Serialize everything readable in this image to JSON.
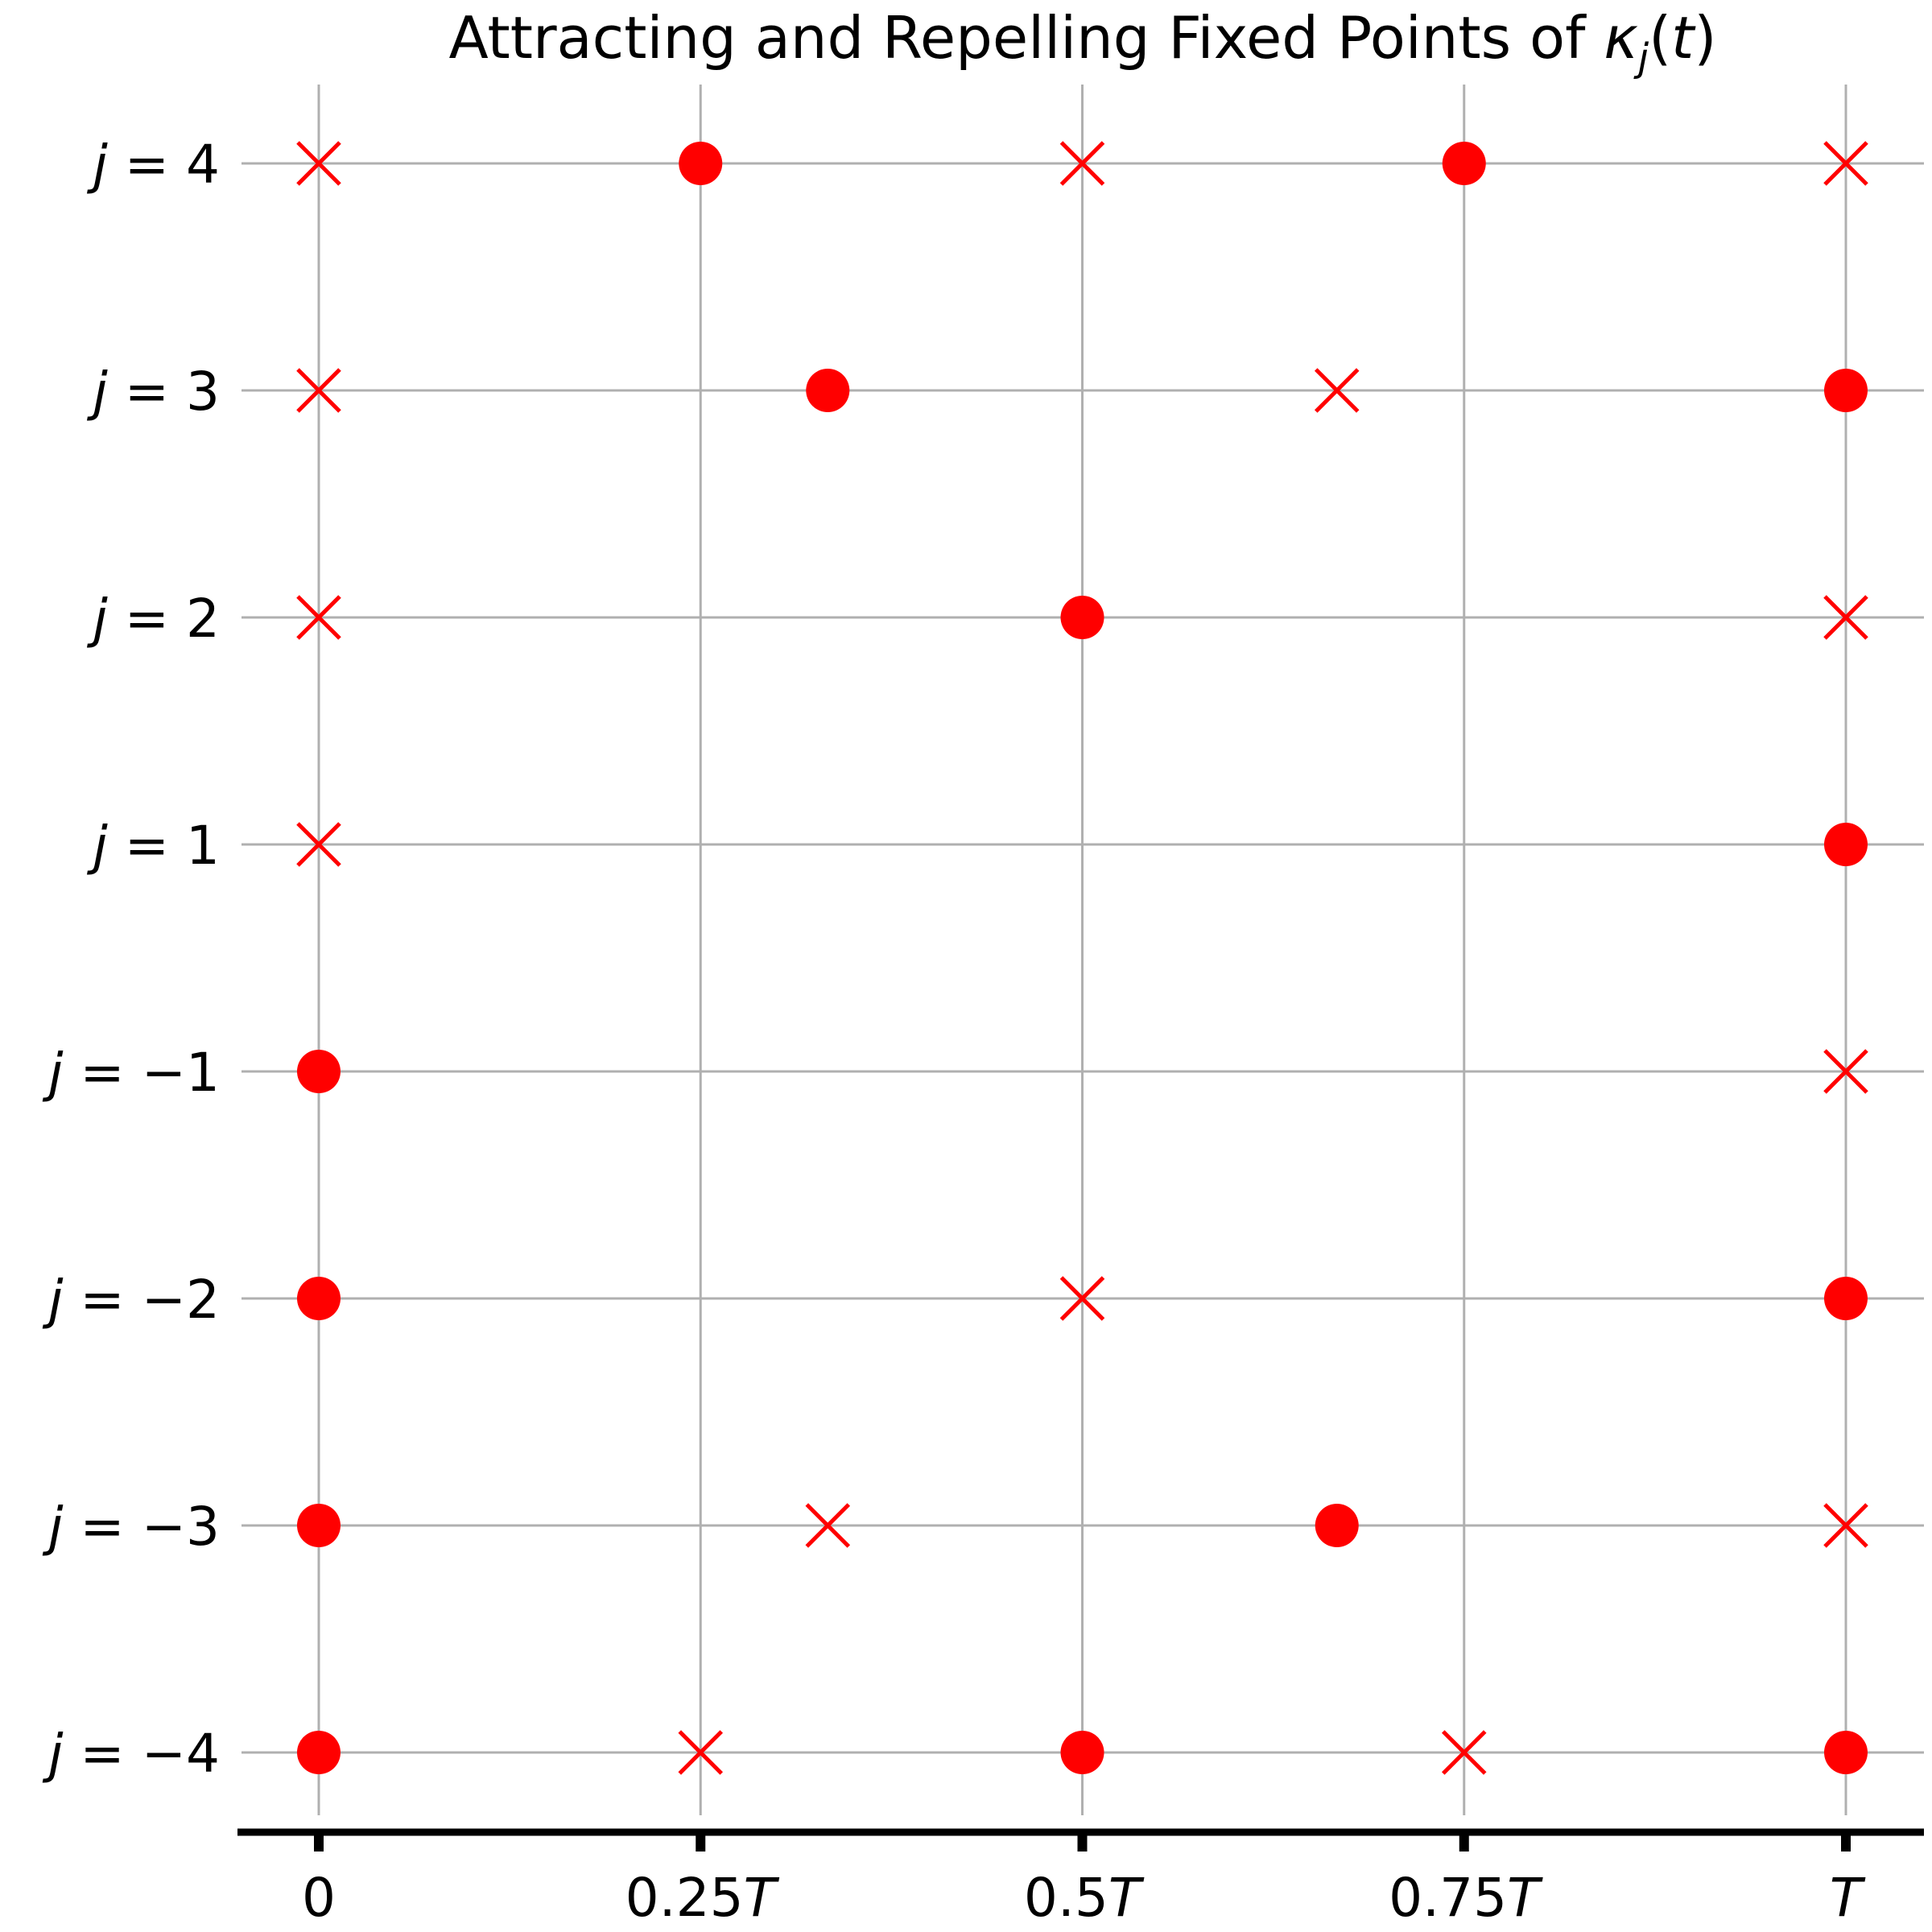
{
  "chart_data": {
    "type": "scatter",
    "title": "Attracting and Repelling Fixed Points of κ_j(t)",
    "title_parts": {
      "prefix": "Attracting and Repelling Fixed Points of ",
      "symbol": "κ",
      "subscript": "j",
      "suffix_open": "(",
      "variable": "t",
      "suffix_close": ")"
    },
    "xlabel": "",
    "ylabel": "",
    "xlim": [
      -0.05,
      1.05
    ],
    "x_ticks": [
      {
        "value": 0,
        "number": "0",
        "unit": ""
      },
      {
        "value": 0.25,
        "number": "0.25",
        "unit": "T"
      },
      {
        "value": 0.5,
        "number": "0.5",
        "unit": "T"
      },
      {
        "value": 0.75,
        "number": "0.75",
        "unit": "T"
      },
      {
        "value": 1,
        "number": "",
        "unit": "T"
      }
    ],
    "y_categories": [
      {
        "j": 4,
        "label": "j = 4",
        "lhs": "j",
        "rhs": "4"
      },
      {
        "j": 3,
        "label": "j = 3",
        "lhs": "j",
        "rhs": "3"
      },
      {
        "j": 2,
        "label": "j = 2",
        "lhs": "j",
        "rhs": "2"
      },
      {
        "j": 1,
        "label": "j = 1",
        "lhs": "j",
        "rhs": "1"
      },
      {
        "j": -1,
        "label": "j = −1",
        "lhs": "j",
        "rhs": "−1"
      },
      {
        "j": -2,
        "label": "j = −2",
        "lhs": "j",
        "rhs": "−2"
      },
      {
        "j": -3,
        "label": "j = −3",
        "lhs": "j",
        "rhs": "−3"
      },
      {
        "j": -4,
        "label": "j = −4",
        "lhs": "j",
        "rhs": "−4"
      }
    ],
    "grid": true,
    "marker_color": "#ff0000",
    "grid_color": "#b0b0b0",
    "axis_color": "#000000",
    "series": [
      {
        "marker": "circle",
        "points": [
          {
            "j": 4,
            "t": 0.25
          },
          {
            "j": 4,
            "t": 0.75
          },
          {
            "j": 3,
            "t": 0.3333
          },
          {
            "j": 3,
            "t": 1.0
          },
          {
            "j": 2,
            "t": 0.5
          },
          {
            "j": 1,
            "t": 1.0
          },
          {
            "j": -1,
            "t": 0.0
          },
          {
            "j": -2,
            "t": 0.0
          },
          {
            "j": -2,
            "t": 1.0
          },
          {
            "j": -3,
            "t": 0.0
          },
          {
            "j": -3,
            "t": 0.6667
          },
          {
            "j": -4,
            "t": 0.0
          },
          {
            "j": -4,
            "t": 0.5
          },
          {
            "j": -4,
            "t": 1.0
          }
        ]
      },
      {
        "marker": "x",
        "points": [
          {
            "j": 4,
            "t": 0.0
          },
          {
            "j": 4,
            "t": 0.5
          },
          {
            "j": 4,
            "t": 1.0
          },
          {
            "j": 3,
            "t": 0.0
          },
          {
            "j": 3,
            "t": 0.6667
          },
          {
            "j": 2,
            "t": 0.0
          },
          {
            "j": 2,
            "t": 1.0
          },
          {
            "j": 1,
            "t": 0.0
          },
          {
            "j": -1,
            "t": 1.0
          },
          {
            "j": -2,
            "t": 0.5
          },
          {
            "j": -3,
            "t": 0.3333
          },
          {
            "j": -3,
            "t": 1.0
          },
          {
            "j": -4,
            "t": 0.25
          },
          {
            "j": -4,
            "t": 0.75
          }
        ]
      }
    ]
  }
}
